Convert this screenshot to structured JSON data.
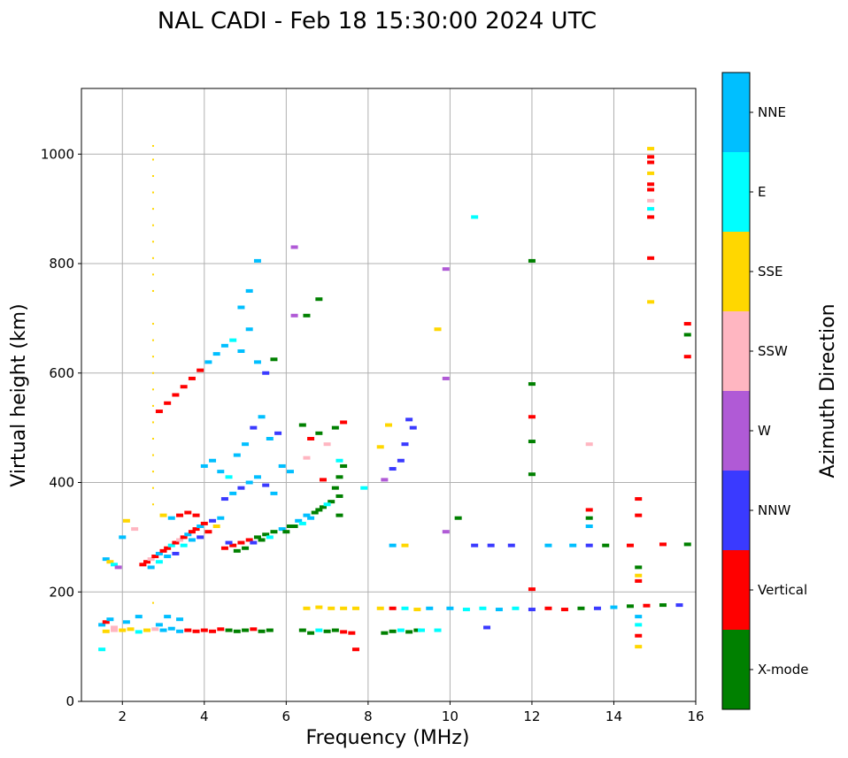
{
  "chart_data": {
    "type": "scatter",
    "title": "NAL CADI - Feb 18 15:30:00 2024 UTC",
    "xlabel": "Frequency (MHz)",
    "ylabel": "Virtual height (km)",
    "xlim": [
      1,
      16
    ],
    "ylim": [
      0,
      1120
    ],
    "xticks": [
      2,
      4,
      6,
      8,
      10,
      12,
      14,
      16
    ],
    "yticks": [
      0,
      200,
      400,
      600,
      800,
      1000
    ],
    "grid": true,
    "colorbar": {
      "label": "Azimuth Direction",
      "categories": [
        {
          "name": "X-mode",
          "color": "#008000"
        },
        {
          "name": "Vertical",
          "color": "#ff0000"
        },
        {
          "name": "NNW",
          "color": "#3a3aff"
        },
        {
          "name": "W",
          "color": "#b05ad6"
        },
        {
          "name": "SSW",
          "color": "#ffb6c1"
        },
        {
          "name": "SSE",
          "color": "#ffd700"
        },
        {
          "name": "E",
          "color": "#00ffff"
        },
        {
          "name": "NNE",
          "color": "#00bfff"
        }
      ]
    },
    "points": [
      [
        1.5,
        95,
        "E"
      ],
      [
        1.5,
        140,
        "NNE"
      ],
      [
        1.6,
        145,
        "Vertical"
      ],
      [
        1.7,
        150,
        "NNE"
      ],
      [
        1.8,
        130,
        "SSW"
      ],
      [
        1.6,
        260,
        "NNE"
      ],
      [
        1.7,
        255,
        "SSE"
      ],
      [
        1.8,
        250,
        "E"
      ],
      [
        1.9,
        245,
        "W"
      ],
      [
        2.1,
        330,
        "SSE"
      ],
      [
        2.3,
        315,
        "SSW"
      ],
      [
        2.0,
        300,
        "NNE"
      ],
      [
        2.5,
        250,
        "Vertical"
      ],
      [
        2.6,
        255,
        "Vertical"
      ],
      [
        2.7,
        260,
        "SSW"
      ],
      [
        2.8,
        265,
        "Vertical"
      ],
      [
        2.9,
        270,
        "NNE"
      ],
      [
        3.0,
        275,
        "Vertical"
      ],
      [
        3.1,
        280,
        "Vertical"
      ],
      [
        3.2,
        285,
        "E"
      ],
      [
        3.3,
        290,
        "Vertical"
      ],
      [
        3.4,
        295,
        "SSW"
      ],
      [
        3.5,
        300,
        "Vertical"
      ],
      [
        3.6,
        305,
        "NNE"
      ],
      [
        3.7,
        310,
        "Vertical"
      ],
      [
        3.8,
        315,
        "Vertical"
      ],
      [
        3.9,
        320,
        "NNE"
      ],
      [
        4.0,
        325,
        "Vertical"
      ],
      [
        4.2,
        330,
        "NNW"
      ],
      [
        4.4,
        335,
        "NNE"
      ],
      [
        2.7,
        245,
        "NNE"
      ],
      [
        2.9,
        255,
        "E"
      ],
      [
        3.1,
        265,
        "NNE"
      ],
      [
        3.3,
        270,
        "NNW"
      ],
      [
        3.5,
        285,
        "E"
      ],
      [
        3.7,
        295,
        "NNE"
      ],
      [
        3.9,
        300,
        "NNW"
      ],
      [
        4.1,
        310,
        "Vertical"
      ],
      [
        4.3,
        320,
        "SSE"
      ],
      [
        3.0,
        340,
        "SSE"
      ],
      [
        3.2,
        335,
        "NNE"
      ],
      [
        3.4,
        340,
        "Vertical"
      ],
      [
        3.6,
        345,
        "Vertical"
      ],
      [
        3.8,
        340,
        "Vertical"
      ],
      [
        4.5,
        280,
        "Vertical"
      ],
      [
        4.7,
        285,
        "Vertical"
      ],
      [
        4.9,
        290,
        "Vertical"
      ],
      [
        5.1,
        295,
        "Vertical"
      ],
      [
        5.3,
        300,
        "X-mode"
      ],
      [
        5.5,
        305,
        "X-mode"
      ],
      [
        5.7,
        310,
        "X-mode"
      ],
      [
        5.9,
        315,
        "NNE"
      ],
      [
        6.1,
        320,
        "X-mode"
      ],
      [
        6.3,
        330,
        "NNE"
      ],
      [
        6.5,
        340,
        "NNE"
      ],
      [
        6.7,
        345,
        "X-mode"
      ],
      [
        6.9,
        355,
        "X-mode"
      ],
      [
        7.1,
        365,
        "X-mode"
      ],
      [
        7.3,
        375,
        "X-mode"
      ],
      [
        7.2,
        390,
        "X-mode"
      ],
      [
        7.3,
        340,
        "X-mode"
      ],
      [
        7.4,
        430,
        "X-mode"
      ],
      [
        4.6,
        290,
        "NNW"
      ],
      [
        4.8,
        275,
        "X-mode"
      ],
      [
        5.0,
        280,
        "X-mode"
      ],
      [
        5.2,
        290,
        "NNW"
      ],
      [
        5.4,
        295,
        "X-mode"
      ],
      [
        5.6,
        300,
        "E"
      ],
      [
        6.0,
        310,
        "X-mode"
      ],
      [
        6.2,
        320,
        "X-mode"
      ],
      [
        6.4,
        325,
        "E"
      ],
      [
        6.6,
        335,
        "NNE"
      ],
      [
        6.8,
        350,
        "X-mode"
      ],
      [
        7.0,
        360,
        "E"
      ],
      [
        2.9,
        530,
        "Vertical"
      ],
      [
        3.1,
        545,
        "Vertical"
      ],
      [
        3.3,
        560,
        "Vertical"
      ],
      [
        3.5,
        575,
        "Vertical"
      ],
      [
        3.7,
        590,
        "Vertical"
      ],
      [
        3.9,
        605,
        "Vertical"
      ],
      [
        4.1,
        620,
        "NNE"
      ],
      [
        4.3,
        635,
        "NNE"
      ],
      [
        4.5,
        650,
        "NNE"
      ],
      [
        4.7,
        660,
        "E"
      ],
      [
        4.9,
        640,
        "NNE"
      ],
      [
        5.1,
        680,
        "NNE"
      ],
      [
        5.3,
        620,
        "NNE"
      ],
      [
        5.5,
        600,
        "NNW"
      ],
      [
        5.7,
        625,
        "X-mode"
      ],
      [
        4.0,
        430,
        "NNE"
      ],
      [
        4.2,
        440,
        "NNE"
      ],
      [
        4.4,
        420,
        "NNE"
      ],
      [
        4.6,
        410,
        "E"
      ],
      [
        4.8,
        450,
        "NNE"
      ],
      [
        5.0,
        470,
        "NNE"
      ],
      [
        5.2,
        500,
        "NNW"
      ],
      [
        5.4,
        520,
        "NNE"
      ],
      [
        5.6,
        480,
        "NNE"
      ],
      [
        5.8,
        490,
        "NNW"
      ],
      [
        5.9,
        430,
        "NNE"
      ],
      [
        6.1,
        420,
        "NNE"
      ],
      [
        4.5,
        370,
        "NNW"
      ],
      [
        4.7,
        380,
        "NNE"
      ],
      [
        4.9,
        390,
        "NNW"
      ],
      [
        5.1,
        400,
        "NNE"
      ],
      [
        5.3,
        410,
        "NNE"
      ],
      [
        5.5,
        395,
        "NNW"
      ],
      [
        5.7,
        380,
        "NNE"
      ],
      [
        6.2,
        830,
        "W"
      ],
      [
        6.2,
        705,
        "W"
      ],
      [
        6.5,
        705,
        "X-mode"
      ],
      [
        6.8,
        735,
        "X-mode"
      ],
      [
        5.3,
        805,
        "NNE"
      ],
      [
        5.1,
        750,
        "NNE"
      ],
      [
        4.9,
        720,
        "NNE"
      ],
      [
        6.4,
        505,
        "X-mode"
      ],
      [
        6.6,
        480,
        "Vertical"
      ],
      [
        6.8,
        490,
        "X-mode"
      ],
      [
        7.0,
        470,
        "SSW"
      ],
      [
        7.2,
        500,
        "X-mode"
      ],
      [
        7.4,
        510,
        "Vertical"
      ],
      [
        6.5,
        445,
        "SSW"
      ],
      [
        7.3,
        440,
        "E"
      ],
      [
        7.3,
        410,
        "X-mode"
      ],
      [
        6.9,
        405,
        "Vertical"
      ],
      [
        1.6,
        128,
        "SSE"
      ],
      [
        1.8,
        135,
        "SSW"
      ],
      [
        2.0,
        130,
        "SSE"
      ],
      [
        2.2,
        132,
        "SSE"
      ],
      [
        2.4,
        127,
        "E"
      ],
      [
        2.6,
        130,
        "SSE"
      ],
      [
        2.8,
        132,
        "SSW"
      ],
      [
        3.0,
        130,
        "NNE"
      ],
      [
        3.2,
        133,
        "NNE"
      ],
      [
        3.4,
        128,
        "NNE"
      ],
      [
        3.6,
        130,
        "Vertical"
      ],
      [
        3.8,
        128,
        "Vertical"
      ],
      [
        4.0,
        130,
        "Vertical"
      ],
      [
        4.2,
        128,
        "Vertical"
      ],
      [
        4.4,
        132,
        "Vertical"
      ],
      [
        4.6,
        130,
        "X-mode"
      ],
      [
        4.8,
        128,
        "X-mode"
      ],
      [
        5.0,
        130,
        "X-mode"
      ],
      [
        5.2,
        132,
        "Vertical"
      ],
      [
        5.4,
        128,
        "X-mode"
      ],
      [
        5.6,
        130,
        "X-mode"
      ],
      [
        3.1,
        155,
        "NNE"
      ],
      [
        3.4,
        150,
        "NNE"
      ],
      [
        2.4,
        155,
        "NNE"
      ],
      [
        2.1,
        145,
        "NNE"
      ],
      [
        2.9,
        140,
        "NNE"
      ],
      [
        6.4,
        130,
        "X-mode"
      ],
      [
        6.6,
        125,
        "X-mode"
      ],
      [
        6.8,
        130,
        "E"
      ],
      [
        7.0,
        128,
        "X-mode"
      ],
      [
        7.2,
        130,
        "X-mode"
      ],
      [
        7.4,
        127,
        "Vertical"
      ],
      [
        6.5,
        170,
        "SSE"
      ],
      [
        6.8,
        172,
        "SSE"
      ],
      [
        7.1,
        170,
        "SSE"
      ],
      [
        7.4,
        170,
        "SSE"
      ],
      [
        7.7,
        170,
        "SSE"
      ],
      [
        8.4,
        125,
        "X-mode"
      ],
      [
        8.6,
        128,
        "X-mode"
      ],
      [
        8.8,
        130,
        "E"
      ],
      [
        9.0,
        127,
        "X-mode"
      ],
      [
        9.2,
        130,
        "X-mode"
      ],
      [
        8.3,
        170,
        "SSE"
      ],
      [
        8.6,
        170,
        "Vertical"
      ],
      [
        8.9,
        170,
        "E"
      ],
      [
        9.2,
        168,
        "SSE"
      ],
      [
        9.5,
        170,
        "NNE"
      ],
      [
        8.6,
        285,
        "NNE"
      ],
      [
        8.9,
        285,
        "SSE"
      ],
      [
        8.4,
        405,
        "W"
      ],
      [
        8.6,
        425,
        "NNW"
      ],
      [
        8.8,
        440,
        "NNW"
      ],
      [
        8.9,
        470,
        "NNW"
      ],
      [
        9.1,
        500,
        "NNW"
      ],
      [
        9.0,
        515,
        "NNW"
      ],
      [
        8.5,
        505,
        "SSE"
      ],
      [
        8.3,
        465,
        "SSE"
      ],
      [
        10.0,
        170,
        "NNE"
      ],
      [
        10.4,
        168,
        "E"
      ],
      [
        10.8,
        170,
        "E"
      ],
      [
        11.2,
        168,
        "NNE"
      ],
      [
        11.6,
        170,
        "E"
      ],
      [
        12.0,
        168,
        "NNW"
      ],
      [
        12.4,
        170,
        "Vertical"
      ],
      [
        12.8,
        168,
        "Vertical"
      ],
      [
        13.2,
        170,
        "X-mode"
      ],
      [
        13.6,
        170,
        "NNW"
      ],
      [
        14.0,
        172,
        "NNE"
      ],
      [
        14.4,
        174,
        "X-mode"
      ],
      [
        14.8,
        175,
        "Vertical"
      ],
      [
        15.2,
        176,
        "X-mode"
      ],
      [
        15.6,
        176,
        "NNW"
      ],
      [
        10.6,
        285,
        "NNW"
      ],
      [
        11.0,
        285,
        "NNW"
      ],
      [
        11.5,
        285,
        "NNW"
      ],
      [
        12.4,
        285,
        "NNE"
      ],
      [
        13.0,
        285,
        "NNE"
      ],
      [
        13.4,
        285,
        "NNW"
      ],
      [
        13.8,
        285,
        "X-mode"
      ],
      [
        14.4,
        285,
        "Vertical"
      ],
      [
        15.2,
        287,
        "Vertical"
      ],
      [
        15.8,
        287,
        "X-mode"
      ],
      [
        10.6,
        885,
        "E"
      ],
      [
        12.0,
        805,
        "X-mode"
      ],
      [
        12.0,
        580,
        "X-mode"
      ],
      [
        12.0,
        520,
        "Vertical"
      ],
      [
        12.0,
        475,
        "X-mode"
      ],
      [
        12.0,
        415,
        "X-mode"
      ],
      [
        12.0,
        205,
        "Vertical"
      ],
      [
        13.4,
        470,
        "SSW"
      ],
      [
        13.4,
        350,
        "Vertical"
      ],
      [
        13.4,
        335,
        "X-mode"
      ],
      [
        13.4,
        320,
        "NNE"
      ],
      [
        14.6,
        370,
        "Vertical"
      ],
      [
        14.6,
        340,
        "Vertical"
      ],
      [
        14.6,
        245,
        "X-mode"
      ],
      [
        14.6,
        230,
        "SSE"
      ],
      [
        14.6,
        220,
        "Vertical"
      ],
      [
        14.6,
        155,
        "NNE"
      ],
      [
        14.6,
        140,
        "E"
      ],
      [
        14.6,
        120,
        "Vertical"
      ],
      [
        14.6,
        100,
        "SSE"
      ],
      [
        14.9,
        1010,
        "SSE"
      ],
      [
        14.9,
        995,
        "Vertical"
      ],
      [
        14.9,
        985,
        "Vertical"
      ],
      [
        14.9,
        965,
        "SSE"
      ],
      [
        14.9,
        945,
        "Vertical"
      ],
      [
        14.9,
        935,
        "Vertical"
      ],
      [
        14.9,
        915,
        "SSW"
      ],
      [
        14.9,
        900,
        "E"
      ],
      [
        14.9,
        885,
        "Vertical"
      ],
      [
        14.9,
        810,
        "Vertical"
      ],
      [
        14.9,
        730,
        "SSE"
      ],
      [
        15.8,
        690,
        "Vertical"
      ],
      [
        15.8,
        670,
        "X-mode"
      ],
      [
        15.8,
        630,
        "Vertical"
      ],
      [
        2.75,
        1015,
        "SSE"
      ],
      [
        2.75,
        990,
        "SSE"
      ],
      [
        2.75,
        960,
        "SSE"
      ],
      [
        2.75,
        930,
        "SSE"
      ],
      [
        2.75,
        900,
        "SSE"
      ],
      [
        2.75,
        870,
        "SSE"
      ],
      [
        2.75,
        840,
        "SSE"
      ],
      [
        2.75,
        810,
        "SSE"
      ],
      [
        2.75,
        780,
        "SSE"
      ],
      [
        2.75,
        750,
        "SSE"
      ],
      [
        2.75,
        690,
        "SSE"
      ],
      [
        2.75,
        660,
        "SSE"
      ],
      [
        2.75,
        630,
        "SSE"
      ],
      [
        2.75,
        600,
        "SSE"
      ],
      [
        2.75,
        570,
        "SSE"
      ],
      [
        2.75,
        540,
        "SSE"
      ],
      [
        2.75,
        510,
        "SSE"
      ],
      [
        2.75,
        480,
        "SSE"
      ],
      [
        2.75,
        450,
        "SSE"
      ],
      [
        2.75,
        420,
        "SSE"
      ],
      [
        2.75,
        390,
        "SSE"
      ],
      [
        2.75,
        360,
        "SSE"
      ],
      [
        2.75,
        180,
        "SSE"
      ],
      [
        9.7,
        680,
        "SSE"
      ],
      [
        9.9,
        590,
        "W"
      ],
      [
        9.9,
        790,
        "W"
      ],
      [
        9.9,
        310,
        "W"
      ],
      [
        10.2,
        335,
        "X-mode"
      ],
      [
        7.9,
        390,
        "E"
      ],
      [
        7.7,
        95,
        "Vertical"
      ],
      [
        7.6,
        125,
        "Vertical"
      ],
      [
        9.3,
        130,
        "E"
      ],
      [
        9.7,
        130,
        "E"
      ],
      [
        10.9,
        135,
        "NNW"
      ]
    ]
  }
}
